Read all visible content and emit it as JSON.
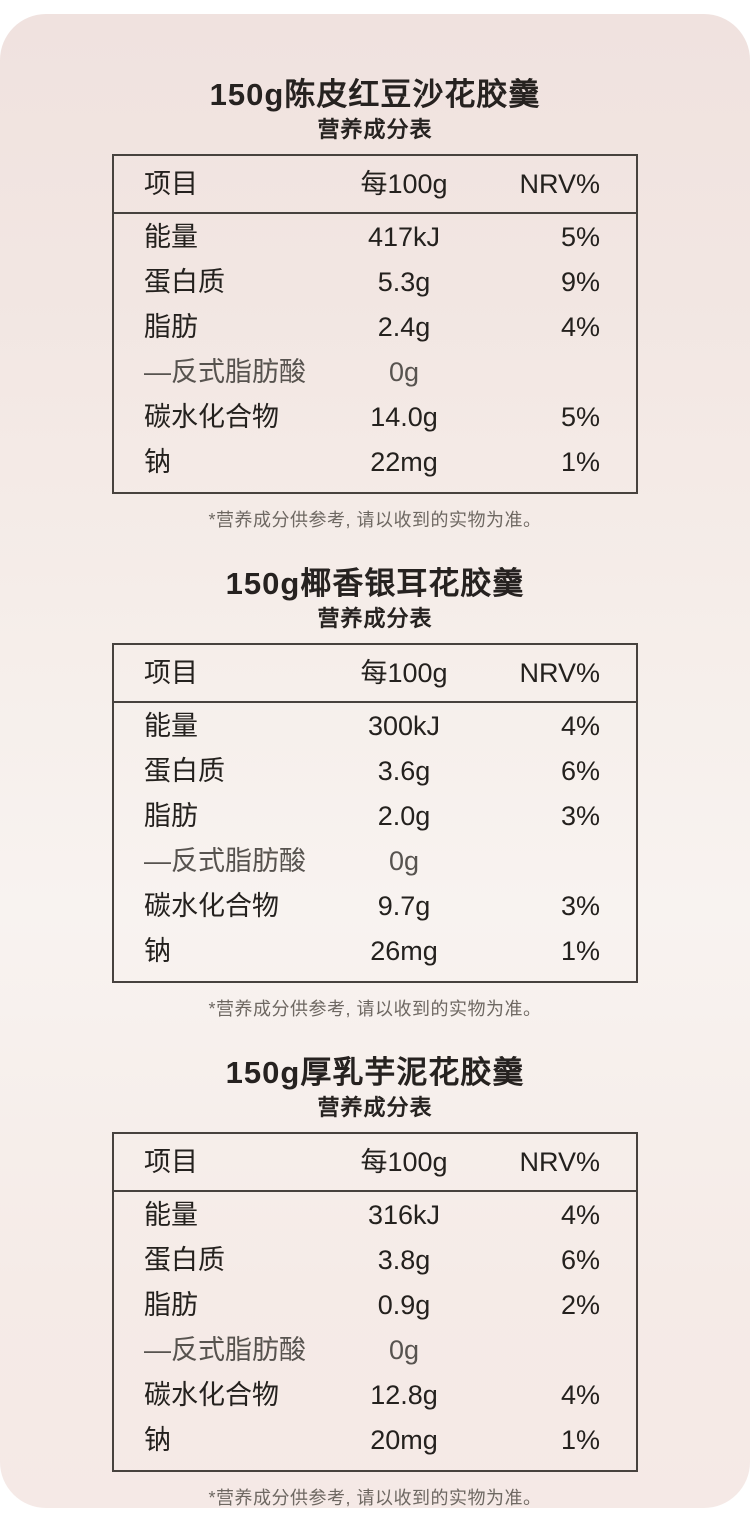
{
  "colors": {
    "page_bg": "#ffffff",
    "panel_pink_top": "#f0e2df",
    "panel_pink_mid": "#f8f3f0",
    "panel_pink_bottom": "#f5e9e6",
    "table_border": "#47423e",
    "text_primary": "#24211e",
    "text_muted_row": "#57534f",
    "text_footnote": "#6e6862"
  },
  "sections": [
    {
      "title": "150g陈皮红豆沙花胶羹",
      "subtitle": "营养成分表",
      "header": {
        "item": "项目",
        "per": "每100g",
        "nrv": "NRV%"
      },
      "rows": [
        {
          "item": "能量",
          "per": "417kJ",
          "nrv": "5%"
        },
        {
          "item": "蛋白质",
          "per": "5.3g",
          "nrv": "9%"
        },
        {
          "item": "脂肪",
          "per": "2.4g",
          "nrv": "4%"
        },
        {
          "item": "—反式脂肪酸",
          "per": "0g",
          "nrv": ""
        },
        {
          "item": "碳水化合物",
          "per": "14.0g",
          "nrv": "5%"
        },
        {
          "item": "钠",
          "per": "22mg",
          "nrv": "1%"
        }
      ],
      "footnote": "*营养成分供参考, 请以收到的实物为准。"
    },
    {
      "title": "150g椰香银耳花胶羹",
      "subtitle": "营养成分表",
      "header": {
        "item": "项目",
        "per": "每100g",
        "nrv": "NRV%"
      },
      "rows": [
        {
          "item": "能量",
          "per": "300kJ",
          "nrv": "4%"
        },
        {
          "item": "蛋白质",
          "per": "3.6g",
          "nrv": "6%"
        },
        {
          "item": "脂肪",
          "per": "2.0g",
          "nrv": "3%"
        },
        {
          "item": "—反式脂肪酸",
          "per": "0g",
          "nrv": ""
        },
        {
          "item": "碳水化合物",
          "per": "9.7g",
          "nrv": "3%"
        },
        {
          "item": "钠",
          "per": "26mg",
          "nrv": "1%"
        }
      ],
      "footnote": "*营养成分供参考, 请以收到的实物为准。"
    },
    {
      "title": "150g厚乳芋泥花胶羹",
      "subtitle": "营养成分表",
      "header": {
        "item": "项目",
        "per": "每100g",
        "nrv": "NRV%"
      },
      "rows": [
        {
          "item": "能量",
          "per": "316kJ",
          "nrv": "4%"
        },
        {
          "item": "蛋白质",
          "per": "3.8g",
          "nrv": "6%"
        },
        {
          "item": "脂肪",
          "per": "0.9g",
          "nrv": "2%"
        },
        {
          "item": "—反式脂肪酸",
          "per": "0g",
          "nrv": ""
        },
        {
          "item": "碳水化合物",
          "per": "12.8g",
          "nrv": "4%"
        },
        {
          "item": "钠",
          "per": "20mg",
          "nrv": "1%"
        }
      ],
      "footnote": "*营养成分供参考, 请以收到的实物为准。"
    }
  ]
}
